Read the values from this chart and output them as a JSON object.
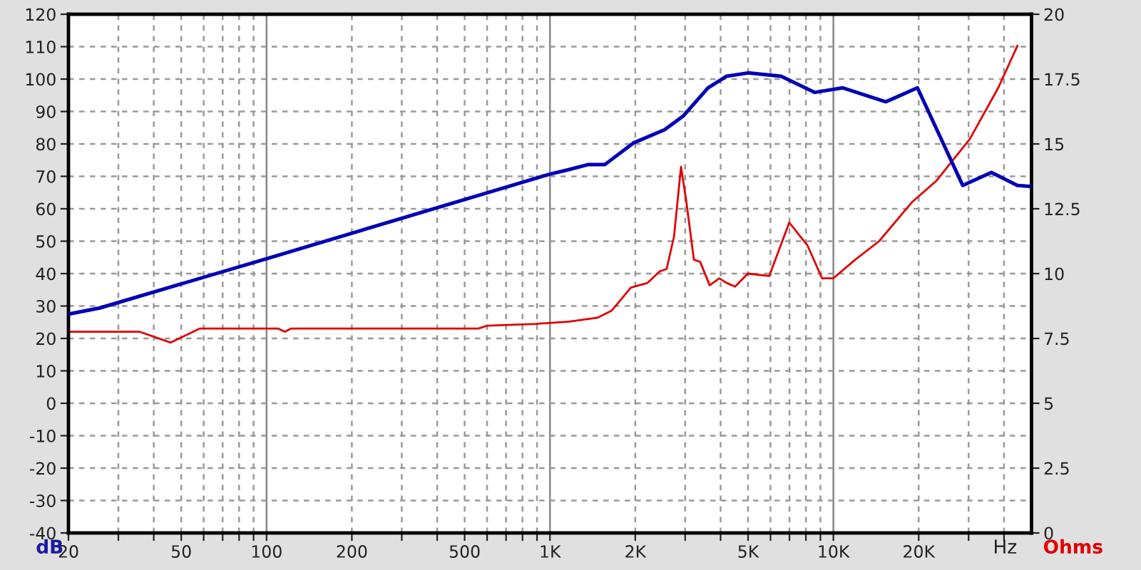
{
  "chart_data": {
    "type": "line",
    "xlabel": "Hz",
    "ylabel": "dB",
    "y2label": "Ohms",
    "log": "x",
    "grid": true,
    "marker": "none",
    "line_style": "solid",
    "xlim": [
      20,
      50000
    ],
    "xticks": [
      20,
      {
        "value": 30,
        "label": null
      },
      {
        "value": 40,
        "label": null
      },
      50,
      {
        "value": 60,
        "label": null
      },
      {
        "value": 70,
        "label": null
      },
      {
        "value": 80,
        "label": null
      },
      {
        "value": 90,
        "label": null
      },
      100,
      200,
      {
        "value": 300,
        "label": null
      },
      {
        "value": 400,
        "label": null
      },
      500,
      {
        "value": 600,
        "label": null
      },
      {
        "value": 700,
        "label": null
      },
      {
        "value": 800,
        "label": null
      },
      {
        "value": 900,
        "label": null
      },
      {
        "value": 1000,
        "label": "1K"
      },
      {
        "value": 2000,
        "label": "2K"
      },
      {
        "value": 3000,
        "label": null
      },
      {
        "value": 4000,
        "label": null
      },
      {
        "value": 5000,
        "label": "5K"
      },
      {
        "value": 6000,
        "label": null
      },
      {
        "value": 7000,
        "label": null
      },
      {
        "value": 8000,
        "label": null
      },
      {
        "value": 9000,
        "label": null
      },
      {
        "value": 10000,
        "label": "10K"
      },
      {
        "value": 20000,
        "label": "20K"
      },
      {
        "value": 30000,
        "label": null
      },
      {
        "value": 40000,
        "label": null
      }
    ],
    "ylim": [
      -40,
      120
    ],
    "yticks": [
      -40,
      -30,
      -20,
      -10,
      0,
      10,
      20,
      30,
      40,
      50,
      60,
      70,
      80,
      90,
      100,
      110,
      120
    ],
    "y2lim": [
      0,
      20
    ],
    "y2ticks": [
      0,
      2.5,
      5,
      7.5,
      10,
      12.5,
      15,
      17.5,
      20
    ],
    "series": [
      {
        "color": "#0000b4",
        "x": [
          20,
          25.8,
          100,
          1000,
          1167,
          1360,
          1560,
          1970,
          2540,
          2960,
          3610,
          4200,
          5000,
          6540,
          8600,
          10800,
          15300,
          19800,
          28600,
          36100,
          44600,
          50000
        ],
        "values": [
          27.5,
          29.4,
          44.6,
          70.7,
          72.1,
          73.6,
          73.6,
          80.3,
          84.4,
          88.7,
          97.3,
          100.9,
          101.9,
          100.9,
          95.9,
          97.3,
          93.0,
          97.3,
          67.2,
          71.2,
          67.2,
          66.9
        ]
      },
      {
        "color": "#e00000",
        "axis": "y2",
        "x": [
          20,
          35.6,
          45.9,
          58,
          110,
          116,
          122,
          559,
          600,
          890,
          1170,
          1470,
          1650,
          1930,
          2210,
          2440,
          2580,
          2740,
          2900,
          3020,
          3220,
          3390,
          3660,
          3960,
          4200,
          4500,
          4990,
          5940,
          6990,
          8110,
          9120,
          10000,
          11950,
          14500,
          19000,
          23100,
          30300,
          38200,
          44600
        ],
        "values": [
          7.76,
          7.76,
          7.34,
          7.88,
          7.88,
          7.76,
          7.88,
          7.88,
          7.99,
          8.06,
          8.15,
          8.3,
          8.57,
          9.46,
          9.64,
          10.09,
          10.18,
          11.43,
          14.12,
          12.87,
          10.54,
          10.45,
          9.55,
          9.82,
          9.64,
          9.5,
          10.0,
          9.91,
          11.97,
          11.08,
          9.82,
          9.82,
          10.54,
          11.25,
          12.77,
          13.58,
          15.19,
          17.17,
          18.78
        ]
      }
    ]
  }
}
